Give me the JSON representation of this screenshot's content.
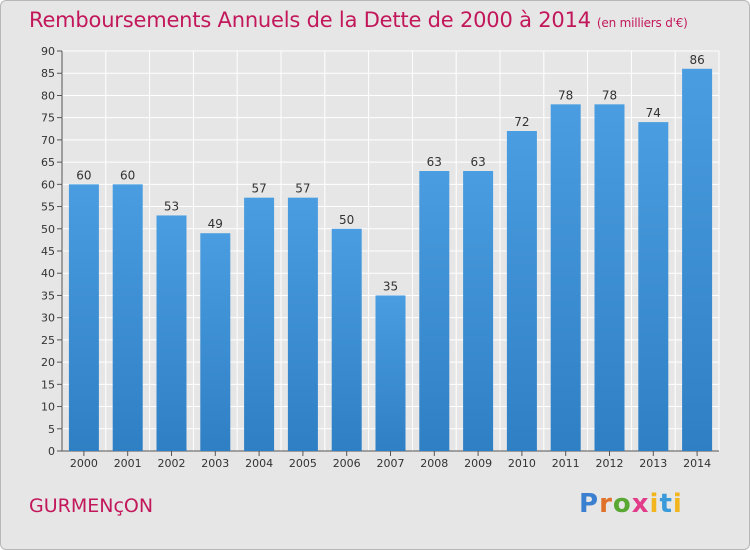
{
  "header": {
    "title": "Remboursements Annuels de la Dette de 2000 à 2014",
    "unit": "(en milliers d'€)"
  },
  "footer": {
    "city": "GURMENçON",
    "logo_letters": [
      "P",
      "r",
      "o",
      "x",
      "i",
      "t",
      "i"
    ]
  },
  "colors": {
    "bar": "#4a9de0",
    "bar_dark": "#2f7fc4",
    "title": "#c2185b",
    "grid": "#ffffff",
    "axis": "#555555"
  },
  "chart_data": {
    "type": "bar",
    "title": "Remboursements Annuels de la Dette de 2000 à 2014",
    "subtitle": "(en milliers d'€)",
    "xlabel": "",
    "ylabel": "",
    "categories": [
      "2000",
      "2001",
      "2002",
      "2003",
      "2004",
      "2005",
      "2006",
      "2007",
      "2008",
      "2009",
      "2010",
      "2011",
      "2012",
      "2013",
      "2014"
    ],
    "values": [
      60,
      60,
      53,
      49,
      57,
      57,
      50,
      35,
      63,
      63,
      72,
      78,
      78,
      74,
      86
    ],
    "ylim": [
      0,
      90
    ],
    "yticks": [
      0,
      5,
      10,
      15,
      20,
      25,
      30,
      35,
      40,
      45,
      50,
      55,
      60,
      65,
      70,
      75,
      80,
      85,
      90
    ],
    "grid": true,
    "data_labels": true
  }
}
